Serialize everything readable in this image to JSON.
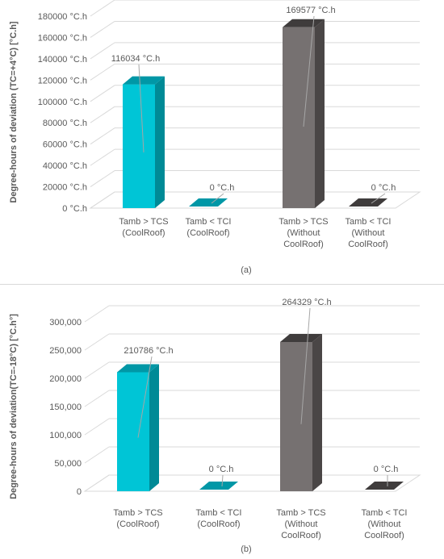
{
  "charts": [
    {
      "panel_label": "(a)",
      "ylabel": "Degree-hours of deviation (TC=+4°C) [°C.h]",
      "tick_labels": [
        "0 °C.h",
        "20000 °C.h",
        "40000 °C.h",
        "60000 °C.h",
        "80000 °C.h",
        "100000 °C.h",
        "120000 °C.h",
        "140000 °C.h",
        "160000 °C.h",
        "180000 °C.h"
      ],
      "categories": [
        [
          "Tamb > TCS",
          "(CoolRoof)"
        ],
        [
          "Tamb < TCI",
          "(CoolRoof)"
        ],
        [
          "Tamb > TCS",
          "(Without",
          "CoolRoof)"
        ],
        [
          "Tamb < TCI",
          "(Without",
          "CoolRoof)"
        ]
      ],
      "data_labels": [
        "116034 °C.h",
        "0 °C.h",
        "169577 °C.h",
        "0 °C.h"
      ]
    },
    {
      "panel_label": "(b)",
      "ylabel": "Degree-hours of deviation(TC=-18°C) [°C.h°]",
      "tick_labels": [
        "0",
        "50,000",
        "100,000",
        "150,000",
        "200,000",
        "250,000",
        "300,000"
      ],
      "categories": [
        [
          "Tamb > TCS",
          "(CoolRoof)"
        ],
        [
          "Tamb < TCI",
          "(CoolRoof)"
        ],
        [
          "Tamb > TCS",
          "(Without",
          "CoolRoof)"
        ],
        [
          "Tamb < TCI",
          "(Without",
          "CoolRoof)"
        ]
      ],
      "data_labels": [
        "210786 °C.h",
        "0 °C.h",
        "264329 °C.h",
        "0 °C.h"
      ]
    }
  ],
  "chart_data": [
    {
      "type": "bar",
      "title": "",
      "ylabel": "Degree-hours of deviation (TC=+4°C) [°C.h]",
      "categories": [
        "Tamb > TCS (CoolRoof)",
        "Tamb < TCI (CoolRoof)",
        "Tamb > TCS (Without CoolRoof)",
        "Tamb < TCI (Without CoolRoof)"
      ],
      "values": [
        116034,
        0,
        169577,
        0
      ],
      "ylim": [
        0,
        180000
      ],
      "ytick_step": 20000,
      "grid": true,
      "colors": [
        "#00c5d6",
        "#00c5d6",
        "#767171",
        "#767171"
      ],
      "side_colors": [
        "#008a96",
        "#008a96",
        "#4a4646",
        "#4a4646"
      ],
      "top_colors": [
        "#0097a6",
        "#0097a6",
        "#3f3c3c",
        "#3f3c3c"
      ]
    },
    {
      "type": "bar",
      "title": "",
      "ylabel": "Degree-hours of deviation(TC=-18°C) [°C.h°]",
      "categories": [
        "Tamb > TCS (CoolRoof)",
        "Tamb < TCI (CoolRoof)",
        "Tamb > TCS (Without CoolRoof)",
        "Tamb < TCI (Without CoolRoof)"
      ],
      "values": [
        210786,
        0,
        264329,
        0
      ],
      "ylim": [
        0,
        300000
      ],
      "ytick_step": 50000,
      "grid": true,
      "colors": [
        "#00c5d6",
        "#00c5d6",
        "#767171",
        "#767171"
      ],
      "side_colors": [
        "#008a96",
        "#008a96",
        "#4a4646",
        "#4a4646"
      ],
      "top_colors": [
        "#0097a6",
        "#0097a6",
        "#3f3c3c",
        "#3f3c3c"
      ]
    }
  ]
}
